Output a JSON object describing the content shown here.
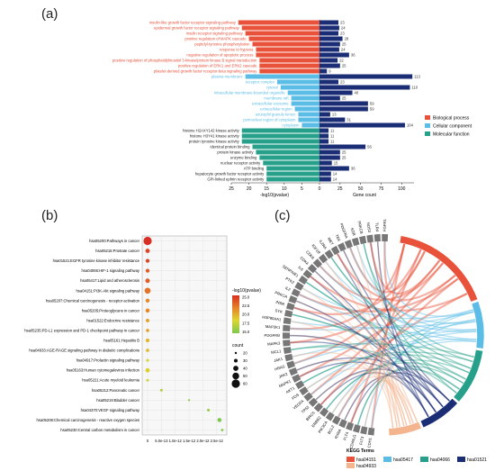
{
  "panels": [
    {
      "label": "(a)"
    },
    {
      "label": "(b)"
    },
    {
      "label": "(c)"
    }
  ],
  "chart_data": [
    {
      "type": "bar",
      "xlabel_left": "-log10(pvalue)",
      "xlabel_right": "Gene count",
      "left_ticks": [
        25,
        20,
        15,
        10,
        5,
        0
      ],
      "right_ticks": [
        0,
        25,
        50,
        75,
        100
      ],
      "legend": [
        {
          "name": "Biological process",
          "color": "#e8513a"
        },
        {
          "name": "Cellular component",
          "color": "#5bbde6"
        },
        {
          "name": "Molecular function",
          "color": "#26a08a"
        }
      ],
      "right_color": "#1b2d75",
      "categories": [
        {
          "term": "insulin-like growth factor receptor signaling pathway",
          "group": "BP",
          "logp": 23,
          "count": 23
        },
        {
          "term": "epidermal growth factor receptor signaling pathway",
          "group": "BP",
          "logp": 22,
          "count": 24
        },
        {
          "term": "insulin receptor signaling pathway",
          "group": "BP",
          "logp": 21,
          "count": 23
        },
        {
          "term": "positive regulation of MAPK cascade",
          "group": "BP",
          "logp": 20,
          "count": 28
        },
        {
          "term": "peptidyl-tyrosine phosphorylation",
          "group": "BP",
          "logp": 19,
          "count": 25
        },
        {
          "term": "response to hypoxia",
          "group": "BP",
          "logp": 18,
          "count": 24
        },
        {
          "term": "negative regulation of apoptotic process",
          "group": "BP",
          "logp": 18,
          "count": 36
        },
        {
          "term": "positive regulation of phosphatidylinositol 3-kinase/protein kinase B signal transduction",
          "group": "BP",
          "logp": 17,
          "count": 22
        },
        {
          "term": "positive regulation of ERK1 and ERK2 cascade",
          "group": "BP",
          "logp": 17,
          "count": 25
        },
        {
          "term": "platelet-derived growth factor receptor-beta signaling pathway",
          "group": "BP",
          "logp": 17,
          "count": 9
        },
        {
          "term": "plasma membrane",
          "group": "CC",
          "logp": 21,
          "count": 113
        },
        {
          "term": "receptor complex",
          "group": "CC",
          "logp": 12,
          "count": 23
        },
        {
          "term": "cytosol",
          "group": "CC",
          "logp": 11,
          "count": 110
        },
        {
          "term": "intracellular membrane-bounded organelle",
          "group": "CC",
          "logp": 9,
          "count": 40
        },
        {
          "term": "membrane raft",
          "group": "CC",
          "logp": 8,
          "count": 25
        },
        {
          "term": "extracellular exosome",
          "group": "CC",
          "logp": 8,
          "count": 59
        },
        {
          "term": "extracellular region",
          "group": "CC",
          "logp": 7,
          "count": 59
        },
        {
          "term": "azurophil granule lumen",
          "group": "CC",
          "logp": 6,
          "count": 13
        },
        {
          "term": "perinuclear region of cytoplasm",
          "group": "CC",
          "logp": 6,
          "count": 31
        },
        {
          "term": "cytoplasm",
          "group": "CC",
          "logp": 5,
          "count": 104
        },
        {
          "term": "histone H2AXY142 kinase activity",
          "group": "MF",
          "logp": 22,
          "count": 11
        },
        {
          "term": "histone H3Y41 kinase activity",
          "group": "MF",
          "logp": 22,
          "count": 11
        },
        {
          "term": "protein tyrosine kinase activity",
          "group": "MF",
          "logp": 22,
          "count": 11
        },
        {
          "term": "identical protein binding",
          "group": "MF",
          "logp": 19,
          "count": 56
        },
        {
          "term": "protein kinase activity",
          "group": "MF",
          "logp": 18,
          "count": 25
        },
        {
          "term": "enzyme binding",
          "group": "MF",
          "logp": 17,
          "count": 25
        },
        {
          "term": "nuclear receptor activity",
          "group": "MF",
          "logp": 16,
          "count": 15
        },
        {
          "term": "ATP binding",
          "group": "MF",
          "logp": 15,
          "count": 36
        },
        {
          "term": "hepatocyte growth factor receptor activity",
          "group": "MF",
          "logp": 15,
          "count": 14
        },
        {
          "term": "GPI-linked ephrin receptor activity",
          "group": "MF",
          "logp": 15,
          "count": 14
        }
      ]
    },
    {
      "type": "scatter",
      "legend_title": "-log10(pvalue)",
      "color_ticks": [
        25.0,
        22.5,
        20.0,
        17.5,
        15.0
      ],
      "count_title": "count",
      "count_ticks": [
        20,
        30,
        40,
        50,
        60
      ],
      "x_ticks": [
        "0",
        "5.0e-13",
        "1.0e-12",
        "1.5e-12",
        "2.0e-12",
        "2.5e-12"
      ],
      "points": [
        {
          "label": "hsa05200:Pathways in cancer",
          "x": 0,
          "count": 60,
          "logp": 26
        },
        {
          "label": "hsa05215:Prostate cancer",
          "x": 0,
          "count": 34,
          "logp": 25
        },
        {
          "label": "hsa01521:EGFR tyrosine kinase inhibitor resistance",
          "x": 0,
          "count": 31,
          "logp": 25
        },
        {
          "label": "hsa04066:HIF-1 signaling pathway",
          "x": 0,
          "count": 31,
          "logp": 24
        },
        {
          "label": "hsa05417:Lipid and atherosclerosis",
          "x": 0,
          "count": 35,
          "logp": 24
        },
        {
          "label": "hsa04151:PI3K-Akt signaling pathway",
          "x": 0,
          "count": 45,
          "logp": 23
        },
        {
          "label": "hsa05207:Chemical carcinogenesis - receptor activation",
          "x": 0,
          "count": 32,
          "logp": 22
        },
        {
          "label": "hsa05205:Proteoglycans in cancer",
          "x": 0,
          "count": 33,
          "logp": 22
        },
        {
          "label": "hsa01522:Endocrine resistance",
          "x": 0,
          "count": 29,
          "logp": 21
        },
        {
          "label": "hsa05235:PD-L1 expression and PD-1 checkpoint pathway in cancer",
          "x": 0,
          "count": 27,
          "logp": 21
        },
        {
          "label": "hsa05161:Hepatitis B",
          "x": 0,
          "count": 31,
          "logp": 20
        },
        {
          "label": "hsa04933:AGE-RAGE signaling pathway in diabetic complications",
          "x": 0,
          "count": 27,
          "logp": 20
        },
        {
          "label": "hsa04917:Prolactin signaling pathway",
          "x": 0,
          "count": 24,
          "logp": 19
        },
        {
          "label": "hsa05163:Human cytomegalovirus infection",
          "x": 0,
          "count": 34,
          "logp": 19
        },
        {
          "label": "hsa05221:Acute myeloid leukemia",
          "x": 0,
          "count": 23,
          "logp": 18
        },
        {
          "label": "hsa05212:Pancreatic cancer",
          "x": 5e-13,
          "count": 24,
          "logp": 17
        },
        {
          "label": "hsa05219:Bladder cancer",
          "x": 1.5e-12,
          "count": 20,
          "logp": 16
        },
        {
          "label": "hsa04370:VEGF signaling pathway",
          "x": 2.2e-12,
          "count": 24,
          "logp": 16
        },
        {
          "label": "hsa05208:Chemical carcinogenesis - reactive oxygen species",
          "x": 2.6e-12,
          "count": 33,
          "logp": 15
        },
        {
          "label": "hsa05230:Central carbon metabolism in cancer",
          "x": 2.7e-12,
          "count": 22,
          "logp": 15
        }
      ]
    },
    {
      "type": "chord",
      "legend_title": "KEGG Terms",
      "terms": [
        {
          "name": "hsa04151",
          "color": "#e8513a"
        },
        {
          "name": "hsa05417",
          "color": "#5bbde6"
        },
        {
          "name": "hsa04066",
          "color": "#26a08a"
        },
        {
          "name": "hsa01521",
          "color": "#1b2d75"
        },
        {
          "name": "hsa04933",
          "color": "#f4b48e"
        }
      ],
      "genes": [
        "CDH1",
        "FLT3",
        "CD40LG",
        "FLT4",
        "RXRA",
        "BCL2",
        "PIK3CA",
        "ERBB2",
        "BIRC5",
        "TP53",
        "VEGFA",
        "FOS",
        "AKT1",
        "MAPK1",
        "JAK2",
        "HRAS",
        "JAK1",
        "MCL1",
        "MAPK3",
        "PDGFRB",
        "MAP2K1",
        "HSP90AA1",
        "SYK",
        "INSR",
        "PRKCA",
        "IL2",
        "PTK2",
        "SERPINE1",
        "IL6",
        "CDK4",
        "CDK6",
        "IGF1R",
        "IL2RA",
        "MET",
        "TEK",
        "PDGFRA",
        "KDR",
        "PRKCB",
        "NOS3",
        "TLR4",
        "FGFR1"
      ]
    }
  ]
}
